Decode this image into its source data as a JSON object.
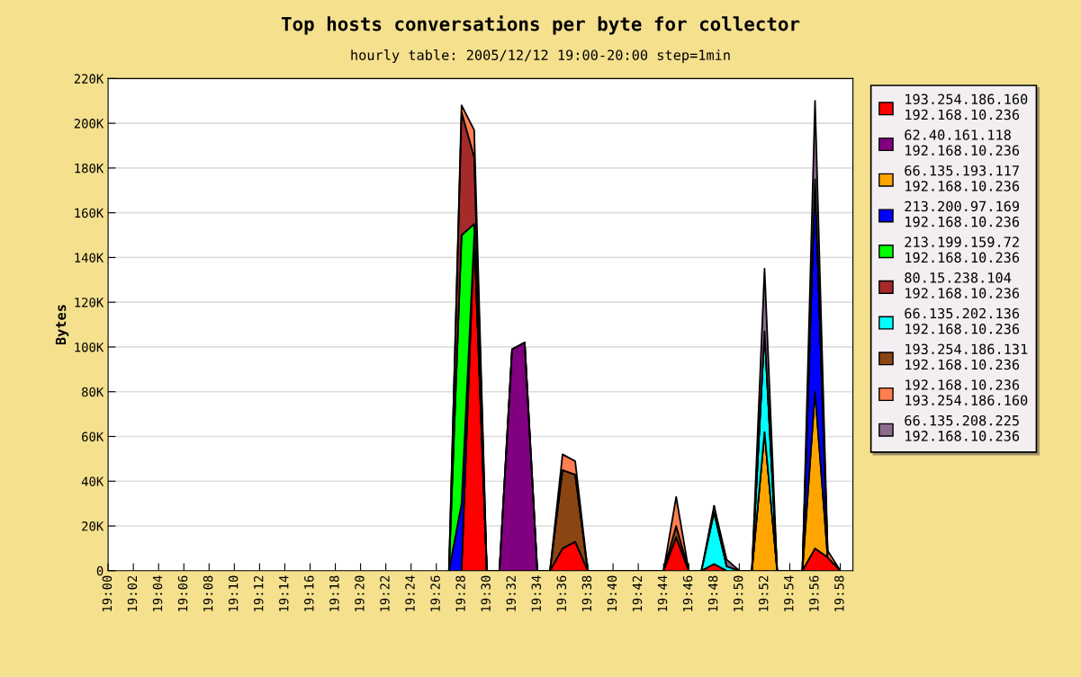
{
  "chart_data": {
    "type": "area",
    "stacked": true,
    "title": "Top hosts conversations per byte for collector",
    "subtitle": "hourly table: 2005/12/12 19:00-20:00 step=1min",
    "ylabel": "Bytes",
    "x": [
      "2005-12-12T19:27",
      "2005-12-12T19:28",
      "2005-12-12T19:29",
      "2005-12-12T19:30",
      "2005-12-12T19:31",
      "2005-12-12T19:32",
      "2005-12-12T19:33",
      "2005-12-12T19:34",
      "2005-12-12T19:35",
      "2005-12-12T19:36",
      "2005-12-12T19:37",
      "2005-12-12T19:38",
      "2005-12-12T19:39",
      "2005-12-12T19:40",
      "2005-12-12T19:41",
      "2005-12-12T19:42",
      "2005-12-12T19:43",
      "2005-12-12T19:44",
      "2005-12-12T19:45",
      "2005-12-12T19:46",
      "2005-12-12T19:47",
      "2005-12-12T19:48",
      "2005-12-12T19:49",
      "2005-12-12T19:50",
      "2005-12-12T19:51",
      "2005-12-12T19:52",
      "2005-12-12T19:53",
      "2005-12-12T19:54",
      "2005-12-12T19:55",
      "2005-12-12T19:56",
      "2005-12-12T19:57",
      "2005-12-12T19:58"
    ],
    "series": [
      {
        "name": "193.254.186.160\n192.168.10.236",
        "color": "#ff0000",
        "values": [
          null,
          0,
          150000,
          0,
          0,
          0,
          0,
          0,
          0,
          10000,
          13000,
          0,
          0,
          0,
          0,
          0,
          0,
          0,
          15000,
          0,
          0,
          3000,
          0,
          0,
          0,
          0,
          0,
          0,
          0,
          10000,
          6000,
          0
        ]
      },
      {
        "name": "62.40.161.118\n192.168.10.236",
        "color": "#800080",
        "values": [
          null,
          null,
          null,
          null,
          0,
          99000,
          102000,
          0,
          null,
          null,
          null,
          null,
          null,
          null,
          null,
          null,
          null,
          null,
          null,
          null,
          null,
          null,
          null,
          null,
          null,
          null,
          null,
          null,
          null,
          null,
          null,
          null
        ]
      },
      {
        "name": "66.135.193.117\n192.168.10.236",
        "color": "#ffa500",
        "values": [
          null,
          null,
          null,
          null,
          null,
          null,
          null,
          null,
          null,
          null,
          null,
          null,
          null,
          null,
          null,
          null,
          null,
          null,
          null,
          null,
          null,
          null,
          null,
          null,
          0,
          62000,
          0,
          0,
          0,
          70000,
          0,
          null
        ]
      },
      {
        "name": "213.200.97.169\n192.168.10.236",
        "color": "#0000ff",
        "values": [
          0,
          30000,
          0,
          0,
          0,
          0,
          0,
          0,
          0,
          0,
          0,
          0,
          0,
          0,
          0,
          0,
          0,
          0,
          0,
          0,
          0,
          0,
          0,
          0,
          0,
          0,
          0,
          0,
          0,
          95000,
          0,
          null
        ]
      },
      {
        "name": "213.199.159.72\n192.168.10.236",
        "color": "#00ff00",
        "values": [
          0,
          120000,
          5000,
          0,
          null,
          null,
          null,
          null,
          null,
          null,
          null,
          null,
          null,
          null,
          null,
          null,
          null,
          null,
          null,
          null,
          null,
          null,
          null,
          null,
          null,
          null,
          null,
          null,
          null,
          null,
          null,
          null
        ]
      },
      {
        "name": "80.15.238.104\n192.168.10.236",
        "color": "#a52a2a",
        "values": [
          0,
          55000,
          30000,
          0,
          null,
          null,
          null,
          null,
          null,
          null,
          null,
          null,
          null,
          null,
          null,
          null,
          null,
          null,
          null,
          null,
          null,
          null,
          null,
          null,
          null,
          null,
          null,
          null,
          null,
          null,
          null,
          null
        ]
      },
      {
        "name": "66.135.202.136\n192.168.10.236",
        "color": "#00ffff",
        "values": [
          null,
          null,
          null,
          null,
          null,
          null,
          null,
          null,
          null,
          null,
          null,
          null,
          null,
          null,
          null,
          null,
          null,
          null,
          null,
          null,
          0,
          23000,
          2000,
          0,
          0,
          45000,
          0,
          null,
          null,
          null,
          null,
          null
        ]
      },
      {
        "name": "193.254.186.131\n192.168.10.236",
        "color": "#8b4513",
        "values": [
          null,
          null,
          null,
          null,
          null,
          null,
          null,
          null,
          0,
          35000,
          30000,
          0,
          0,
          0,
          0,
          0,
          0,
          0,
          5000,
          0,
          null,
          null,
          null,
          null,
          null,
          null,
          null,
          null,
          null,
          null,
          null,
          null
        ]
      },
      {
        "name": "192.168.10.236\n193.254.186.160",
        "color": "#ff7f50",
        "values": [
          0,
          3000,
          12000,
          0,
          0,
          0,
          0,
          0,
          0,
          7000,
          6000,
          0,
          0,
          0,
          0,
          0,
          0,
          0,
          13000,
          0,
          0,
          3000,
          0,
          0,
          0,
          0,
          0,
          0,
          0,
          0,
          3000,
          0
        ]
      },
      {
        "name": "66.135.208.225\n192.168.10.236",
        "color": "#8c6c8c",
        "values": [
          null,
          null,
          null,
          null,
          null,
          null,
          null,
          null,
          null,
          null,
          null,
          null,
          null,
          null,
          null,
          null,
          null,
          null,
          null,
          null,
          null,
          0,
          3000,
          0,
          0,
          28000,
          0,
          0,
          0,
          35000,
          0,
          null
        ]
      }
    ],
    "xlim": [
      "2005-12-12T19:00",
      "2005-12-12T19:59"
    ],
    "xticks": [
      {
        "value": "2005-12-12T19:00",
        "label": "19:00"
      },
      {
        "value": "2005-12-12T19:02",
        "label": "19:02"
      },
      {
        "value": "2005-12-12T19:04",
        "label": "19:04"
      },
      {
        "value": "2005-12-12T19:06",
        "label": "19:06"
      },
      {
        "value": "2005-12-12T19:08",
        "label": "19:08"
      },
      {
        "value": "2005-12-12T19:10",
        "label": "19:10"
      },
      {
        "value": "2005-12-12T19:12",
        "label": "19:12"
      },
      {
        "value": "2005-12-12T19:14",
        "label": "19:14"
      },
      {
        "value": "2005-12-12T19:16",
        "label": "19:16"
      },
      {
        "value": "2005-12-12T19:18",
        "label": "19:18"
      },
      {
        "value": "2005-12-12T19:20",
        "label": "19:20"
      },
      {
        "value": "2005-12-12T19:22",
        "label": "19:22"
      },
      {
        "value": "2005-12-12T19:24",
        "label": "19:24"
      },
      {
        "value": "2005-12-12T19:26",
        "label": "19:26"
      },
      {
        "value": "2005-12-12T19:28",
        "label": "19:28"
      },
      {
        "value": "2005-12-12T19:30",
        "label": "19:30"
      },
      {
        "value": "2005-12-12T19:32",
        "label": "19:32"
      },
      {
        "value": "2005-12-12T19:34",
        "label": "19:34"
      },
      {
        "value": "2005-12-12T19:36",
        "label": "19:36"
      },
      {
        "value": "2005-12-12T19:38",
        "label": "19:38"
      },
      {
        "value": "2005-12-12T19:40",
        "label": "19:40"
      },
      {
        "value": "2005-12-12T19:42",
        "label": "19:42"
      },
      {
        "value": "2005-12-12T19:44",
        "label": "19:44"
      },
      {
        "value": "2005-12-12T19:46",
        "label": "19:46"
      },
      {
        "value": "2005-12-12T19:48",
        "label": "19:48"
      },
      {
        "value": "2005-12-12T19:50",
        "label": "19:50"
      },
      {
        "value": "2005-12-12T19:52",
        "label": "19:52"
      },
      {
        "value": "2005-12-12T19:54",
        "label": "19:54"
      },
      {
        "value": "2005-12-12T19:56",
        "label": "19:56"
      },
      {
        "value": "2005-12-12T19:58",
        "label": "19:58"
      }
    ],
    "ylim": [
      0,
      220000
    ],
    "yticks": [
      0,
      {
        "value": 20000,
        "label": "20K"
      },
      {
        "value": 40000,
        "label": "40K"
      },
      {
        "value": 60000,
        "label": "60K"
      },
      {
        "value": 80000,
        "label": "80K"
      },
      {
        "value": 100000,
        "label": "100K"
      },
      {
        "value": 120000,
        "label": "120K"
      },
      {
        "value": 140000,
        "label": "140K"
      },
      {
        "value": 160000,
        "label": "160K"
      },
      {
        "value": 180000,
        "label": "180K"
      },
      {
        "value": 200000,
        "label": "200K"
      },
      {
        "value": 220000,
        "label": "220K"
      }
    ],
    "grid": "y",
    "legend": "right"
  }
}
